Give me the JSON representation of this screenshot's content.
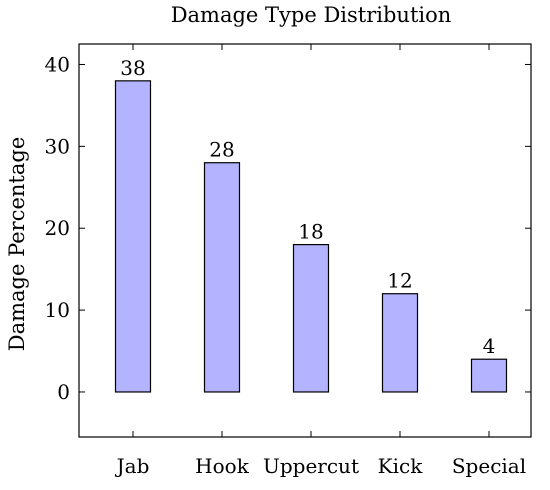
{
  "chart_data": {
    "type": "bar",
    "title": "Damage Type Distribution",
    "xlabel": "",
    "ylabel": "Damage Percentage",
    "categories": [
      "Jab",
      "Hook",
      "Uppercut",
      "Kick",
      "Special"
    ],
    "values": [
      38,
      28,
      18,
      12,
      4
    ],
    "ylim": [
      -5.5,
      42.5
    ],
    "yticks": [
      0,
      10,
      20,
      30,
      40
    ],
    "grid": false,
    "legend": "none",
    "colors": {
      "bar_fill": "#b3b3ff",
      "bar_stroke": "#000000",
      "axis": "#000000"
    }
  }
}
